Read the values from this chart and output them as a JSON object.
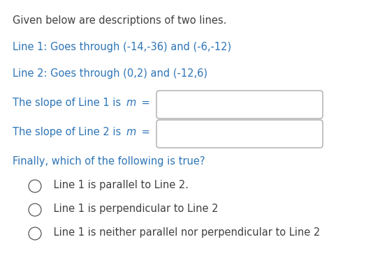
{
  "bg_color": "#ffffff",
  "text_color_black": "#404040",
  "text_color_blue": "#2e75b6",
  "line1_intro": "Given below are descriptions of two lines.",
  "line1_text": "Line 1: Goes through (-14,-36) and (-6,-12)",
  "line2_text": "Line 2: Goes through (0,2) and (-12,6)",
  "finally_text": "Finally, which of the following is true?",
  "option1": " Line 1 is parallel to Line 2.",
  "option2": " Line 1 is perpendicular to Line 2",
  "option3": " Line 1 is neither parallel nor perpendicular to Line 2",
  "box_color": "#ffffff",
  "box_edge_color": "#aaaaaa",
  "base_fs": 10.5,
  "figwidth": 5.54,
  "figheight": 3.83,
  "dpi": 100
}
